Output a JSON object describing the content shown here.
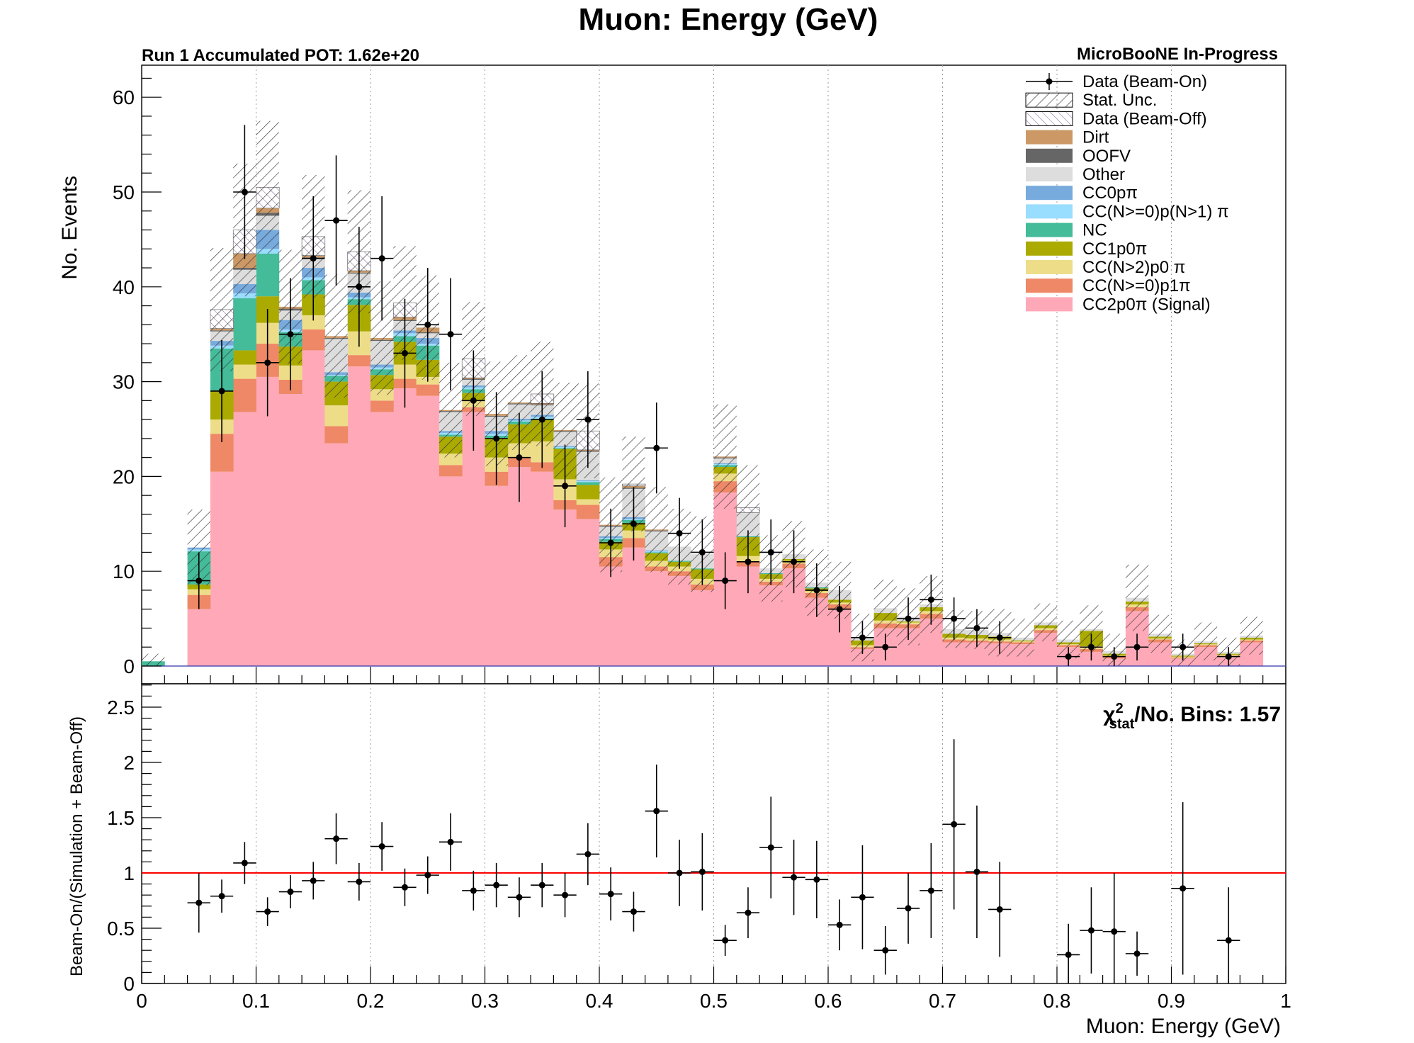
{
  "chart_data": [
    {
      "type": "bar",
      "title": "Muon: Energy (GeV)",
      "subtitle_left": "Run 1 Accumulated POT: 1.62e+20",
      "subtitle_right": "MicroBooNE In-Progress",
      "ylabel": "No. Events",
      "xlim": [
        0,
        1
      ],
      "ylim": [
        0,
        60
      ],
      "y_ticks": [
        "0",
        "10",
        "20",
        "30",
        "40",
        "50",
        "60"
      ],
      "stacked": true,
      "grid": "vertical",
      "legend_position": "top-right",
      "bin_edges": [
        0,
        0.02,
        0.04,
        0.06,
        0.08,
        0.1,
        0.12,
        0.14,
        0.16,
        0.18,
        0.2,
        0.22,
        0.24,
        0.26,
        0.28,
        0.3,
        0.32,
        0.34,
        0.36,
        0.38,
        0.4,
        0.42,
        0.44,
        0.46,
        0.48,
        0.5,
        0.52,
        0.54,
        0.56,
        0.58,
        0.6,
        0.62,
        0.64,
        0.66,
        0.68,
        0.7,
        0.72,
        0.74,
        0.76,
        0.78,
        0.8,
        0.82,
        0.84,
        0.86,
        0.88,
        0.9,
        0.92,
        0.94,
        0.96,
        0.98,
        1.0
      ],
      "legend": [
        {
          "label": "Data (Beam-On)",
          "key": "data"
        },
        {
          "label": "Stat. Unc.",
          "key": "stat"
        },
        {
          "label": "Data (Beam-Off)",
          "key": "beamoff"
        },
        {
          "label": "Dirt",
          "key": "dirt"
        },
        {
          "label": "OOFV",
          "key": "oofv"
        },
        {
          "label": "Other",
          "key": "other"
        },
        {
          "label": "CC0pπ",
          "key": "cc0p"
        },
        {
          "label": "CC(N>=0)p(N>1) π",
          "key": "ccnpi"
        },
        {
          "label": "NC",
          "key": "nc"
        },
        {
          "label": "CC1p0π",
          "key": "cc1p"
        },
        {
          "label": "CC(N>2)p0 π",
          "key": "ccn2p"
        },
        {
          "label": "CC(N>=0)p1π",
          "key": "cc1pi"
        },
        {
          "label": "CC2p0π (Signal)",
          "key": "signal"
        }
      ],
      "series": [
        {
          "key": "signal",
          "color": "#ffa9b8",
          "values": [
            0,
            0,
            6,
            20.5,
            26.8,
            30.5,
            28.7,
            33.3,
            23.5,
            31.6,
            26.8,
            29.3,
            28.5,
            20,
            26.8,
            19,
            21,
            20.5,
            16.5,
            15.5,
            10.5,
            12.5,
            10,
            9.5,
            8,
            18.3,
            10.5,
            8.5,
            10.3,
            7.2,
            6,
            1.8,
            4,
            4,
            5,
            2.5,
            2.5,
            2.4,
            2.3,
            3.5,
            2,
            1.5,
            0.8,
            5.8,
            2.5,
            0.8,
            2,
            1,
            2.5,
            0
          ]
        },
        {
          "key": "cc1pi",
          "color": "#ee8866",
          "values": [
            0,
            0,
            1.5,
            4,
            3.5,
            3.5,
            1.5,
            2.2,
            1.8,
            1.2,
            1.2,
            1.0,
            1.2,
            1.2,
            0.5,
            1.5,
            1.0,
            1.0,
            1.0,
            1.5,
            1.0,
            1.0,
            0.5,
            0.5,
            0.6,
            1.2,
            0.5,
            0.4,
            0.5,
            0.5,
            0.5,
            0.2,
            0.5,
            0.4,
            0.5,
            0.3,
            0.2,
            0.2,
            0.2,
            0.3,
            0.2,
            0.3,
            0.2,
            0.4,
            0.3,
            0.1,
            0.2,
            0.1,
            0.2,
            0
          ]
        },
        {
          "key": "ccn2p",
          "color": "#eedd88",
          "values": [
            0,
            0,
            0.6,
            1.5,
            1.5,
            2.2,
            1.5,
            1.5,
            2.2,
            2.5,
            1.2,
            1.5,
            0.8,
            1.2,
            0.7,
            1.5,
            1.5,
            2.2,
            2.2,
            0.6,
            0.8,
            0.8,
            0.6,
            0.5,
            0.6,
            0.8,
            0.6,
            0.3,
            0.3,
            0.2,
            0.2,
            0.2,
            0.3,
            0.2,
            0.3,
            0.2,
            0.2,
            0.2,
            0.1,
            0.2,
            0.1,
            0.3,
            0.1,
            0.3,
            0.1,
            0.1,
            0.1,
            0.1,
            0.1,
            0
          ]
        },
        {
          "key": "cc1p",
          "color": "#aaaa00",
          "values": [
            0,
            0,
            0.5,
            3,
            1.5,
            2.8,
            2,
            2.2,
            2.5,
            2.8,
            1.5,
            2.4,
            1.8,
            1.8,
            0.8,
            2.0,
            2.0,
            2.3,
            3.2,
            1.5,
            0.8,
            0.8,
            0.8,
            0.5,
            1.0,
            0.7,
            2.0,
            0.5,
            0.2,
            0.3,
            0.3,
            0.5,
            0.8,
            0.1,
            0.4,
            0.4,
            0.4,
            0.3,
            0.1,
            0.3,
            0.2,
            1.6,
            0.2,
            0.3,
            0.2,
            0.1,
            0.1,
            0.1,
            0.2,
            0
          ]
        },
        {
          "key": "nc",
          "color": "#44bb99",
          "values": [
            0.5,
            0,
            3.5,
            4.5,
            5.5,
            4.5,
            1.5,
            1.5,
            0.6,
            0.6,
            0.6,
            0.6,
            1.5,
            0.2,
            0.4,
            0.3,
            0.3,
            0.1,
            0.1,
            0.3,
            0.3,
            0.3,
            0.1,
            0.1,
            0.1,
            0.2,
            0.1,
            0.1,
            0,
            0.1,
            0,
            0,
            0,
            0,
            0,
            0,
            0,
            0,
            0,
            0,
            0,
            0,
            0,
            0,
            0,
            0,
            0,
            0,
            0,
            0
          ]
        },
        {
          "key": "ccnpi",
          "color": "#99ddff",
          "values": [
            0,
            0,
            0.2,
            0.3,
            0.5,
            0.5,
            0.3,
            0.3,
            0.1,
            0.2,
            0.2,
            0.3,
            0.2,
            0.2,
            0.2,
            0.2,
            0.1,
            0.2,
            0.1,
            0.1,
            0.1,
            0.1,
            0.1,
            0,
            0,
            0.1,
            0,
            0,
            0,
            0,
            0,
            0,
            0,
            0,
            0,
            0,
            0,
            0,
            0,
            0,
            0,
            0,
            0,
            0,
            0,
            0,
            0,
            0,
            0,
            0,
            0
          ]
        },
        {
          "key": "cc0p",
          "color": "#77aadd",
          "values": [
            0,
            0,
            0.2,
            0.5,
            1,
            2.0,
            1.0,
            1.0,
            0.3,
            0.5,
            0.3,
            0.3,
            0.6,
            0.2,
            0.2,
            0.3,
            0.2,
            0.2,
            0.1,
            0.1,
            0.2,
            0.2,
            0.1,
            0,
            0,
            0.1,
            0,
            0,
            0,
            0,
            0,
            0,
            0,
            0,
            0,
            0,
            0,
            0,
            0,
            0,
            0,
            0,
            0,
            0,
            0,
            0,
            0,
            0,
            0,
            0,
            0
          ]
        },
        {
          "key": "other",
          "color": "#dddddd",
          "values": [
            0,
            0,
            0,
            1,
            1.5,
            1.5,
            1.0,
            1.0,
            3.5,
            2.0,
            2.5,
            1.0,
            0.5,
            2.0,
            0.6,
            1.5,
            1.5,
            1.0,
            1.5,
            3.0,
            1.0,
            3.0,
            2.0,
            1.5,
            1.5,
            0.5,
            2.5,
            0.5,
            0.5,
            0.5,
            1.0,
            0.3,
            0.5,
            0.5,
            0.3,
            0.5,
            0.5,
            0.4,
            0.3,
            0.3,
            0.3,
            0.2,
            0.3,
            0.4,
            0.3,
            0.2,
            0.2,
            0.2,
            0.2,
            0
          ]
        },
        {
          "key": "oofv",
          "color": "#666666",
          "values": [
            0,
            0,
            0,
            0.1,
            0.2,
            0.3,
            0.2,
            0.1,
            0.1,
            0.1,
            0.1,
            0.1,
            0.1,
            0.1,
            0.1,
            0.1,
            0.1,
            0.1,
            0.1,
            0.1,
            0.1,
            0.1,
            0.1,
            0,
            0,
            0.1,
            0,
            0,
            0,
            0,
            0,
            0,
            0,
            0,
            0,
            0,
            0,
            0,
            0,
            0,
            0,
            0,
            0,
            0,
            0,
            0,
            0,
            0,
            0,
            0,
            0
          ]
        },
        {
          "key": "dirt",
          "color": "#cc9966",
          "values": [
            0,
            0,
            0,
            0.2,
            1.5,
            0.5,
            0.2,
            0.2,
            0.2,
            0.2,
            0.2,
            0.3,
            0.5,
            0.1,
            0.1,
            0.2,
            0.1,
            0.1,
            0.1,
            0.1,
            0.1,
            0.2,
            0.1,
            0,
            0,
            0.1,
            0,
            0,
            0,
            0,
            0,
            0,
            0,
            0,
            0,
            0,
            0,
            0,
            0,
            0,
            0,
            0,
            0,
            0,
            0,
            0,
            0,
            0,
            0,
            0,
            0
          ]
        },
        {
          "key": "beamoff",
          "color": "#ffffff",
          "values": [
            0,
            0,
            0,
            2,
            2.5,
            2.2,
            0,
            2,
            0,
            2,
            0,
            1.5,
            0,
            0,
            2,
            0,
            0,
            1,
            0,
            2,
            0,
            0.2,
            0,
            0,
            0,
            0,
            0.5,
            0,
            0,
            0,
            0,
            0,
            0,
            0,
            0,
            0,
            0,
            0,
            0,
            0,
            0,
            0,
            0,
            0,
            0,
            0,
            0,
            0,
            0,
            0
          ]
        }
      ],
      "stat_unc": [
        0.8,
        0,
        4,
        6.5,
        7,
        7,
        6,
        6.5,
        6.5,
        6.5,
        6,
        6,
        5.5,
        5,
        6,
        5.5,
        5,
        5.5,
        5,
        5,
        5,
        5,
        4.5,
        4,
        4,
        5.5,
        4.5,
        3.5,
        3.5,
        3.5,
        3,
        2.5,
        3,
        3,
        3,
        2,
        2,
        2.5,
        2,
        2,
        2,
        2.5,
        1.8,
        3.5,
        2,
        1.5,
        2,
        1.5,
        2,
        0
      ],
      "data_points": {
        "x": [
          0.05,
          0.07,
          0.09,
          0.11,
          0.13,
          0.15,
          0.17,
          0.19,
          0.21,
          0.23,
          0.25,
          0.27,
          0.29,
          0.31,
          0.33,
          0.35,
          0.37,
          0.39,
          0.41,
          0.43,
          0.45,
          0.47,
          0.49,
          0.51,
          0.53,
          0.55,
          0.57,
          0.59,
          0.61,
          0.63,
          0.65,
          0.67,
          0.69,
          0.71,
          0.73,
          0.75,
          0.81,
          0.83,
          0.85,
          0.87,
          0.91,
          0.95
        ],
        "y": [
          9,
          29,
          50,
          32,
          35,
          43,
          47,
          40,
          43,
          33,
          36,
          35,
          28,
          24,
          22,
          26,
          19,
          26,
          13,
          15,
          23,
          14,
          12,
          9,
          11,
          12,
          11,
          8,
          6,
          3,
          2,
          5,
          7,
          5,
          4,
          3,
          1,
          2,
          1,
          2,
          2,
          1
        ]
      }
    },
    {
      "type": "scatter",
      "ylabel": "Beam-On/(Simulation + Beam-Off)",
      "xlabel": "Muon: Energy (GeV)",
      "xlim": [
        0,
        1
      ],
      "ylim": [
        0,
        2.7
      ],
      "x_ticks": [
        "0",
        "0.1",
        "0.2",
        "0.3",
        "0.4",
        "0.5",
        "0.6",
        "0.7",
        "0.8",
        "0.9",
        "1"
      ],
      "y_ticks": [
        "0",
        "0.5",
        "1",
        "1.5",
        "2",
        "2.5"
      ],
      "reference_line": 1,
      "reference_color": "#ff0000",
      "chi2_label": "/No. Bins: 1.57",
      "chi2_symbol": "χ",
      "chi2_sup": "2",
      "chi2_sub": "stat",
      "x": [
        0.05,
        0.07,
        0.09,
        0.11,
        0.13,
        0.15,
        0.17,
        0.19,
        0.21,
        0.23,
        0.25,
        0.27,
        0.29,
        0.31,
        0.33,
        0.35,
        0.37,
        0.39,
        0.41,
        0.43,
        0.45,
        0.47,
        0.49,
        0.51,
        0.53,
        0.55,
        0.57,
        0.59,
        0.61,
        0.63,
        0.65,
        0.67,
        0.69,
        0.71,
        0.73,
        0.75,
        0.81,
        0.83,
        0.85,
        0.87,
        0.91,
        0.95
      ],
      "y": [
        0.73,
        0.79,
        1.09,
        0.65,
        0.83,
        0.93,
        1.31,
        0.92,
        1.24,
        0.87,
        0.98,
        1.28,
        0.84,
        0.89,
        0.78,
        0.89,
        0.8,
        1.17,
        0.81,
        0.65,
        1.56,
        1.0,
        1.01,
        0.39,
        0.64,
        1.23,
        0.96,
        0.94,
        0.53,
        0.78,
        0.3,
        0.68,
        0.84,
        1.44,
        1.01,
        0.67,
        0.26,
        0.48,
        0.47,
        0.27,
        0.86,
        0.39
      ],
      "y_err": [
        0.27,
        0.15,
        0.19,
        0.13,
        0.15,
        0.17,
        0.23,
        0.17,
        0.22,
        0.17,
        0.17,
        0.26,
        0.18,
        0.2,
        0.18,
        0.2,
        0.2,
        0.28,
        0.24,
        0.18,
        0.42,
        0.3,
        0.35,
        0.14,
        0.23,
        0.46,
        0.34,
        0.35,
        0.23,
        0.47,
        0.22,
        0.32,
        0.43,
        0.77,
        0.6,
        0.43,
        0.28,
        0.39,
        0.53,
        0.2,
        0.78,
        0.48
      ]
    }
  ]
}
